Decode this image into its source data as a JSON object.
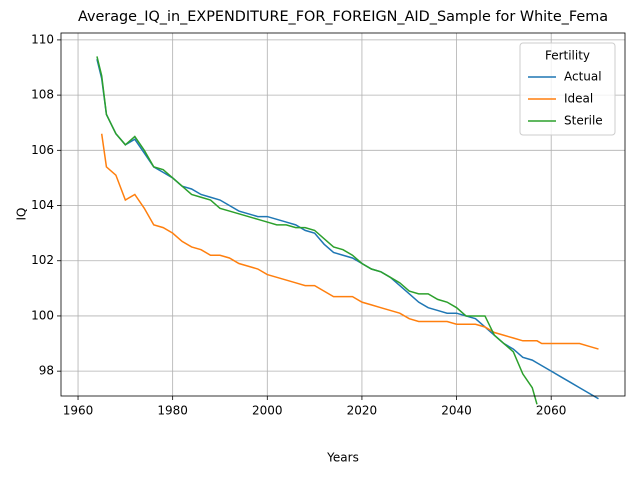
{
  "chart_data": {
    "type": "line",
    "title": "Average_IQ_in_EXPENDITURE_FOR_FOREIGN_AID_Sample for White_Fema",
    "xlabel": "Years",
    "ylabel": "IQ",
    "x": [
      1964,
      1965,
      1966,
      1968,
      1970,
      1972,
      1974,
      1976,
      1978,
      1980,
      1982,
      1984,
      1986,
      1988,
      1990,
      1992,
      1994,
      1996,
      1998,
      2000,
      2002,
      2004,
      2006,
      2008,
      2010,
      2012,
      2014,
      2016,
      2018,
      2020,
      2022,
      2024,
      2026,
      2028,
      2030,
      2032,
      2034,
      2036,
      2038,
      2040,
      2042,
      2044,
      2046,
      2048,
      2050,
      2052,
      2054,
      2056,
      2057,
      2058,
      2060,
      2062,
      2064,
      2066,
      2068,
      2070
    ],
    "series": [
      {
        "name": "Actual",
        "color": "#1f77b4",
        "values": [
          109.3,
          108.6,
          107.3,
          106.6,
          106.2,
          106.4,
          105.9,
          105.4,
          105.2,
          105.0,
          104.7,
          104.6,
          104.4,
          104.3,
          104.2,
          104.0,
          103.8,
          103.7,
          103.6,
          103.6,
          103.5,
          103.4,
          103.3,
          103.1,
          103.0,
          102.6,
          102.3,
          102.2,
          102.1,
          101.9,
          101.7,
          101.6,
          101.4,
          101.1,
          100.8,
          100.5,
          100.3,
          100.2,
          100.1,
          100.1,
          100.0,
          99.9,
          99.6,
          99.3,
          99.0,
          98.8,
          98.5,
          98.4,
          98.3,
          98.2,
          98.0,
          97.8,
          97.6,
          97.4,
          97.2,
          97.0
        ]
      },
      {
        "name": "Ideal",
        "color": "#ff7f0e",
        "values": [
          null,
          106.6,
          105.4,
          105.1,
          104.2,
          104.4,
          103.9,
          103.3,
          103.2,
          103.0,
          102.7,
          102.5,
          102.4,
          102.2,
          102.2,
          102.1,
          101.9,
          101.8,
          101.7,
          101.5,
          101.4,
          101.3,
          101.2,
          101.1,
          101.1,
          100.9,
          100.7,
          100.7,
          100.7,
          100.5,
          100.4,
          100.3,
          100.2,
          100.1,
          99.9,
          99.8,
          99.8,
          99.8,
          99.8,
          99.7,
          99.7,
          99.7,
          99.6,
          99.4,
          99.3,
          99.2,
          99.1,
          99.1,
          99.1,
          99.0,
          99.0,
          99.0,
          99.0,
          99.0,
          98.9,
          98.8
        ]
      },
      {
        "name": "Sterile",
        "color": "#2ca02c",
        "values": [
          109.4,
          108.7,
          107.3,
          106.6,
          106.2,
          106.5,
          106.0,
          105.4,
          105.3,
          105.0,
          104.7,
          104.4,
          104.3,
          104.2,
          103.9,
          103.8,
          103.7,
          103.6,
          103.5,
          103.4,
          103.3,
          103.3,
          103.2,
          103.2,
          103.1,
          102.8,
          102.5,
          102.4,
          102.2,
          101.9,
          101.7,
          101.6,
          101.4,
          101.2,
          100.9,
          100.8,
          100.8,
          100.6,
          100.5,
          100.3,
          100.0,
          100.0,
          100.0,
          99.3,
          99.0,
          98.7,
          97.9,
          97.4,
          96.8,
          null,
          null,
          null,
          null,
          null,
          null,
          null
        ]
      }
    ],
    "xlim": [
      1956.4,
      2075.6
    ],
    "ylim": [
      97.1,
      110.25
    ],
    "xticks": [
      1960,
      1980,
      2000,
      2020,
      2040,
      2060
    ],
    "yticks": [
      98,
      100,
      102,
      104,
      106,
      108,
      110
    ],
    "grid": true,
    "legend": {
      "title": "Fertility",
      "loc": "upper right"
    }
  }
}
